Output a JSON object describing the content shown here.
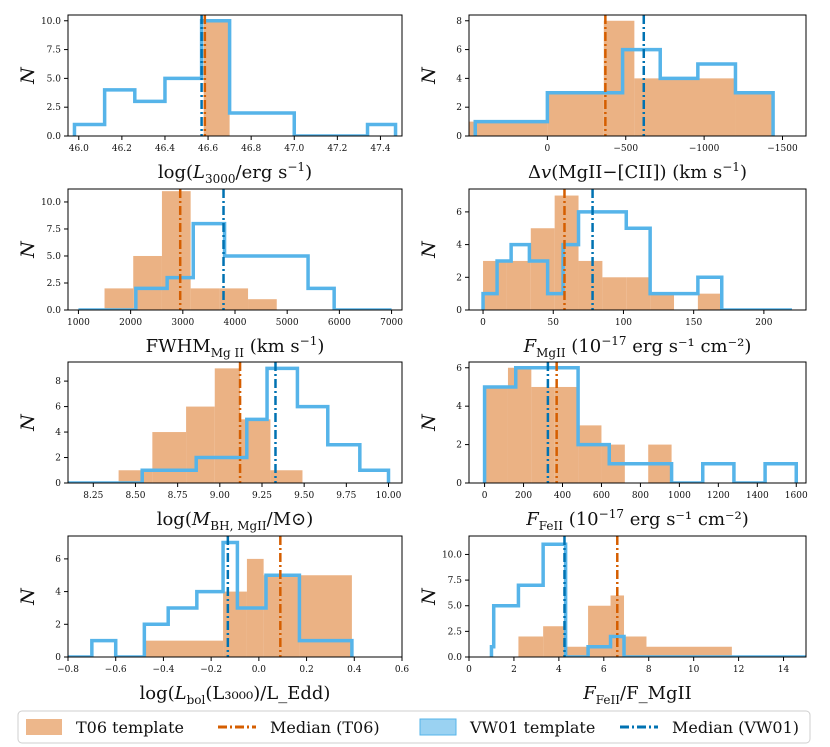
{
  "colors": {
    "t06_fill": "#E8A56E",
    "vw01_line": "#56B4E9",
    "median_t06": "#D55E00",
    "median_vw01": "#0072B2",
    "axis": "#000000"
  },
  "legend": {
    "t06_template": "T06 template",
    "median_t06": "Median (T06)",
    "vw01_template": "VW01 template",
    "median_vw01": "Median (VW01)"
  },
  "chart_data": [
    {
      "type": "bar",
      "title": "",
      "ylabel": "N",
      "xlabel": "log(L3000/erg s−1)",
      "xlabel_parts": {
        "pre": "log(",
        "sym": "L",
        "sub": "3000",
        "post": "/erg s",
        "sup": "−1",
        "end": ")"
      },
      "xlim": [
        45.95,
        47.5
      ],
      "ylim": [
        0,
        10.5
      ],
      "xticks": [
        {
          "v": 46.0,
          "label": "46.0"
        },
        {
          "v": 46.2,
          "label": "46.2"
        },
        {
          "v": 46.4,
          "label": "46.4"
        },
        {
          "v": 46.6,
          "label": "46.6"
        },
        {
          "v": 46.8,
          "label": "46.8"
        },
        {
          "v": 47.0,
          "label": "47.0"
        },
        {
          "v": 47.2,
          "label": "47.2"
        },
        {
          "v": 47.4,
          "label": "47.4"
        }
      ],
      "yticks": [
        {
          "v": 0,
          "label": "0.0"
        },
        {
          "v": 2.5,
          "label": "2.5"
        },
        {
          "v": 5,
          "label": "5.0"
        },
        {
          "v": 7.5,
          "label": "7.5"
        },
        {
          "v": 10,
          "label": "10.0"
        }
      ],
      "t06": {
        "edges": [
          46.58,
          46.7
        ],
        "counts": [
          10
        ]
      },
      "vw01": {
        "edges": [
          45.98,
          46.12,
          46.26,
          46.4,
          46.57,
          46.7,
          47.0,
          47.34,
          47.47
        ],
        "counts": [
          1,
          4,
          3,
          5,
          10,
          2,
          0,
          1
        ]
      },
      "median_t06": 46.585,
      "median_vw01": 46.57
    },
    {
      "type": "bar",
      "title": "",
      "ylabel": "N",
      "xlabel": "Δv(MgII−[CII]) (km s−1)",
      "xlabel_parts": {
        "pre": "Δ",
        "sym": "v",
        "sub": "",
        "post": "(MgII−[CII]) (km s",
        "sup": "−1",
        "end": ")"
      },
      "xlim": [
        500,
        -1650
      ],
      "ylim": [
        0,
        8.4
      ],
      "xticks": [
        {
          "v": 0,
          "label": "0"
        },
        {
          "v": -500,
          "label": "−500"
        },
        {
          "v": -1000,
          "label": "−1000"
        },
        {
          "v": -1500,
          "label": "−1500"
        }
      ],
      "yticks": [
        {
          "v": 0,
          "label": "0"
        },
        {
          "v": 2,
          "label": "2"
        },
        {
          "v": 4,
          "label": "4"
        },
        {
          "v": 6,
          "label": "6"
        },
        {
          "v": 8,
          "label": "8"
        }
      ],
      "t06": {
        "edges": [
          500,
          0,
          -360,
          -555,
          -1200,
          -1440
        ],
        "counts": [
          1,
          3,
          8,
          4,
          3
        ]
      },
      "vw01": {
        "edges": [
          460,
          0,
          -480,
          -720,
          -960,
          -1200,
          -1440
        ],
        "counts": [
          1,
          3,
          6,
          4,
          5,
          3
        ]
      },
      "median_t06": -370,
      "median_vw01": -615
    },
    {
      "type": "bar",
      "title": "",
      "ylabel": "N",
      "xlabel": "FWHM MgII (km s−1)",
      "xlabel_parts": {
        "pre": "FWHM",
        "sym": "",
        "sub": "Mg II",
        "post": " (km s",
        "sup": "−1",
        "end": ")"
      },
      "xlim": [
        800,
        7200
      ],
      "ylim": [
        0,
        11.2
      ],
      "xticks": [
        {
          "v": 1000,
          "label": "1000"
        },
        {
          "v": 2000,
          "label": "2000"
        },
        {
          "v": 3000,
          "label": "3000"
        },
        {
          "v": 4000,
          "label": "4000"
        },
        {
          "v": 5000,
          "label": "5000"
        },
        {
          "v": 6000,
          "label": "6000"
        },
        {
          "v": 7000,
          "label": "7000"
        }
      ],
      "yticks": [
        {
          "v": 0,
          "label": "0.0"
        },
        {
          "v": 2.5,
          "label": "2.5"
        },
        {
          "v": 5,
          "label": "5.0"
        },
        {
          "v": 7.5,
          "label": "7.5"
        },
        {
          "v": 10,
          "label": "10.0"
        }
      ],
      "t06": {
        "edges": [
          1500,
          2050,
          2600,
          3150,
          3700,
          4250,
          4800
        ],
        "counts": [
          2,
          5,
          11,
          2,
          2,
          1
        ]
      },
      "vw01": {
        "edges": [
          1000,
          2100,
          2700,
          3200,
          3800,
          4400,
          5400,
          5900,
          7000
        ],
        "counts": [
          0,
          2,
          3,
          8,
          5,
          5,
          2,
          0
        ]
      },
      "median_t06": 2950,
      "median_vw01": 3780
    },
    {
      "type": "bar",
      "title": "",
      "ylabel": "N",
      "xlabel": "FMgII (10−17 erg s−1 cm−2)",
      "xlabel_parts": {
        "pre": "",
        "sym": "F",
        "sub": "MgII",
        "post": " (10",
        "sup": "−17",
        "end": " erg s⁻¹ cm⁻²)"
      },
      "xlim": [
        -10,
        230
      ],
      "ylim": [
        0,
        7.4
      ],
      "xticks": [
        {
          "v": 0,
          "label": "0"
        },
        {
          "v": 50,
          "label": "50"
        },
        {
          "v": 100,
          "label": "100"
        },
        {
          "v": 150,
          "label": "150"
        },
        {
          "v": 200,
          "label": "200"
        }
      ],
      "yticks": [
        {
          "v": 0,
          "label": "0"
        },
        {
          "v": 2,
          "label": "2"
        },
        {
          "v": 4,
          "label": "4"
        },
        {
          "v": 6,
          "label": "6"
        }
      ],
      "t06": {
        "edges": [
          0,
          17,
          34,
          51,
          68,
          85,
          102,
          119,
          136,
          153,
          170
        ],
        "counts": [
          3,
          3,
          5,
          7,
          3,
          2,
          2,
          1,
          0,
          1
        ]
      },
      "vw01": {
        "edges": [
          0,
          10,
          20,
          33,
          46,
          57,
          68,
          85,
          102,
          119,
          136,
          153,
          170,
          220
        ],
        "counts": [
          1,
          3,
          4,
          3,
          1,
          4,
          6,
          6,
          5,
          1,
          1,
          2,
          0
        ]
      },
      "median_t06": 58,
      "median_vw01": 78
    },
    {
      "type": "bar",
      "title": "",
      "ylabel": "N",
      "xlabel": "log(MBH, MgII/M⊙)",
      "xlabel_parts": {
        "pre": "log(",
        "sym": "M",
        "sub": "BH, MgII",
        "post": "/",
        "sup": "",
        "end": "M⊙)"
      },
      "xlim": [
        8.1,
        10.08
      ],
      "ylim": [
        0,
        9.5
      ],
      "xticks": [
        {
          "v": 8.25,
          "label": "8.25"
        },
        {
          "v": 8.5,
          "label": "8.50"
        },
        {
          "v": 8.75,
          "label": "8.75"
        },
        {
          "v": 9.0,
          "label": "9.00"
        },
        {
          "v": 9.25,
          "label": "9.25"
        },
        {
          "v": 9.5,
          "label": "9.50"
        },
        {
          "v": 9.75,
          "label": "9.75"
        },
        {
          "v": 10.0,
          "label": "10.00"
        }
      ],
      "yticks": [
        {
          "v": 0,
          "label": "0"
        },
        {
          "v": 2,
          "label": "2"
        },
        {
          "v": 4,
          "label": "4"
        },
        {
          "v": 6,
          "label": "6"
        },
        {
          "v": 8,
          "label": "8"
        }
      ],
      "t06": {
        "edges": [
          8.4,
          8.6,
          8.8,
          8.97,
          9.12,
          9.3,
          9.49,
          9.66
        ],
        "counts": [
          1,
          4,
          6,
          9,
          5,
          1,
          0
        ]
      },
      "vw01": {
        "edges": [
          8.1,
          8.54,
          8.86,
          9.16,
          9.28,
          9.46,
          9.64,
          9.83,
          10.0
        ],
        "counts": [
          0,
          1,
          2,
          5,
          9,
          6,
          3,
          1
        ]
      },
      "median_t06": 9.12,
      "median_vw01": 9.33
    },
    {
      "type": "bar",
      "title": "",
      "ylabel": "N",
      "xlabel": "FFeII (10−17 erg s−1 cm−2)",
      "xlabel_parts": {
        "pre": "",
        "sym": "F",
        "sub": "FeII",
        "post": " (10",
        "sup": "−17",
        "end": " erg s⁻¹ cm⁻²)"
      },
      "xlim": [
        -80,
        1650
      ],
      "ylim": [
        0,
        6.3
      ],
      "xticks": [
        {
          "v": 0,
          "label": "0"
        },
        {
          "v": 200,
          "label": "200"
        },
        {
          "v": 400,
          "label": "400"
        },
        {
          "v": 600,
          "label": "600"
        },
        {
          "v": 800,
          "label": "800"
        },
        {
          "v": 1000,
          "label": "1000"
        },
        {
          "v": 1200,
          "label": "1200"
        },
        {
          "v": 1400,
          "label": "1400"
        },
        {
          "v": 1600,
          "label": "1600"
        }
      ],
      "yticks": [
        {
          "v": 0,
          "label": "0"
        },
        {
          "v": 2,
          "label": "2"
        },
        {
          "v": 4,
          "label": "4"
        },
        {
          "v": 6,
          "label": "6"
        }
      ],
      "t06": {
        "edges": [
          0,
          120,
          240,
          360,
          480,
          600,
          720,
          840,
          960
        ],
        "counts": [
          5,
          6,
          5,
          5,
          3,
          2,
          0,
          2
        ]
      },
      "vw01": {
        "edges": [
          0,
          160,
          320,
          480,
          640,
          800,
          960,
          1120,
          1280,
          1440,
          1600
        ],
        "counts": [
          5,
          6,
          6,
          2,
          1,
          1,
          0,
          1,
          0,
          1
        ]
      },
      "median_t06": 370,
      "median_vw01": 325
    },
    {
      "type": "bar",
      "title": "",
      "ylabel": "N",
      "xlabel": "log(Lbol(L3000)/LEdd)",
      "xlabel_parts": {
        "pre": "log(",
        "sym": "L",
        "sub": "bol",
        "post": "(L₃₀₀₀)/",
        "sup": "",
        "end": "L_Edd)"
      },
      "xlim": [
        -0.8,
        0.6
      ],
      "ylim": [
        0,
        7.4
      ],
      "xticks": [
        {
          "v": -0.8,
          "label": "−0.8"
        },
        {
          "v": -0.6,
          "label": "−0.6"
        },
        {
          "v": -0.4,
          "label": "−0.4"
        },
        {
          "v": -0.2,
          "label": "−0.2"
        },
        {
          "v": 0.0,
          "label": "0.0"
        },
        {
          "v": 0.2,
          "label": "0.2"
        },
        {
          "v": 0.4,
          "label": "0.4"
        },
        {
          "v": 0.6,
          "label": "0.6"
        }
      ],
      "yticks": [
        {
          "v": 0,
          "label": "0"
        },
        {
          "v": 2,
          "label": "2"
        },
        {
          "v": 4,
          "label": "4"
        },
        {
          "v": 6,
          "label": "6"
        }
      ],
      "t06": {
        "edges": [
          -0.48,
          -0.15,
          -0.05,
          0.02,
          0.09,
          0.17,
          0.39
        ],
        "counts": [
          1,
          4,
          6,
          5,
          5,
          5
        ]
      },
      "vw01": {
        "edges": [
          -0.8,
          -0.7,
          -0.6,
          -0.48,
          -0.38,
          -0.26,
          -0.15,
          -0.09,
          0.03,
          0.09,
          0.17,
          0.29,
          0.39
        ],
        "counts": [
          0,
          1,
          0,
          2,
          3,
          4,
          7,
          3,
          5,
          5,
          1,
          1
        ]
      },
      "median_t06": 0.09,
      "median_vw01": -0.13
    },
    {
      "type": "bar",
      "title": "",
      "ylabel": "N",
      "xlabel": "FFeII/FMgII",
      "xlabel_parts": {
        "pre": "",
        "sym": "F",
        "sub": "FeII",
        "post": "/",
        "sup": "",
        "end": "F_MgII"
      },
      "xlim": [
        0,
        15
      ],
      "ylim": [
        0,
        11.8
      ],
      "xticks": [
        {
          "v": 0,
          "label": "0"
        },
        {
          "v": 2,
          "label": "2"
        },
        {
          "v": 4,
          "label": "4"
        },
        {
          "v": 6,
          "label": "6"
        },
        {
          "v": 8,
          "label": "8"
        },
        {
          "v": 10,
          "label": "10"
        },
        {
          "v": 12,
          "label": "12"
        },
        {
          "v": 14,
          "label": "14"
        }
      ],
      "yticks": [
        {
          "v": 0,
          "label": "0.0"
        },
        {
          "v": 2.5,
          "label": "2.5"
        },
        {
          "v": 5,
          "label": "5.0"
        },
        {
          "v": 7.5,
          "label": "7.5"
        },
        {
          "v": 10,
          "label": "10.0"
        }
      ],
      "t06": {
        "edges": [
          2.2,
          3.3,
          4.3,
          5.3,
          6.3,
          6.9,
          7.9,
          11.7
        ],
        "counts": [
          2,
          3,
          1,
          5,
          6,
          2,
          1
        ]
      },
      "vw01": {
        "edges": [
          1.0,
          1.1,
          2.2,
          3.3,
          4.3,
          5.3,
          6.3,
          6.9,
          15
        ],
        "counts": [
          1,
          5,
          7,
          11,
          0,
          1,
          2,
          0
        ]
      },
      "median_t06": 6.6,
      "median_vw01": 4.25
    }
  ]
}
